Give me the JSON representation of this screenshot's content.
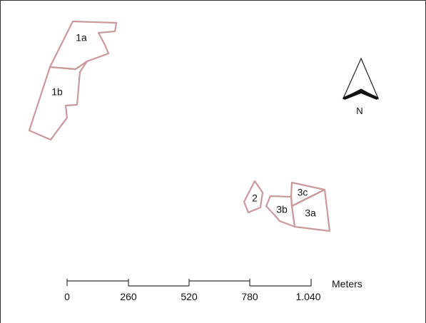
{
  "map": {
    "parcels": [
      {
        "id": "parcel-1a",
        "label": "1a"
      },
      {
        "id": "parcel-1b",
        "label": "1b"
      },
      {
        "id": "parcel-2",
        "label": "2"
      },
      {
        "id": "parcel-3b",
        "label": "3b"
      },
      {
        "id": "parcel-3c",
        "label": "3c"
      },
      {
        "id": "parcel-3a",
        "label": "3a"
      }
    ],
    "parcel_stroke_color": "#c9999b",
    "north_arrow": {
      "icon": "north-arrow-icon",
      "label": "N"
    },
    "scale_bar": {
      "ticks": [
        "0",
        "260",
        "520",
        "780",
        "1.040"
      ],
      "unit": "Meters"
    }
  }
}
